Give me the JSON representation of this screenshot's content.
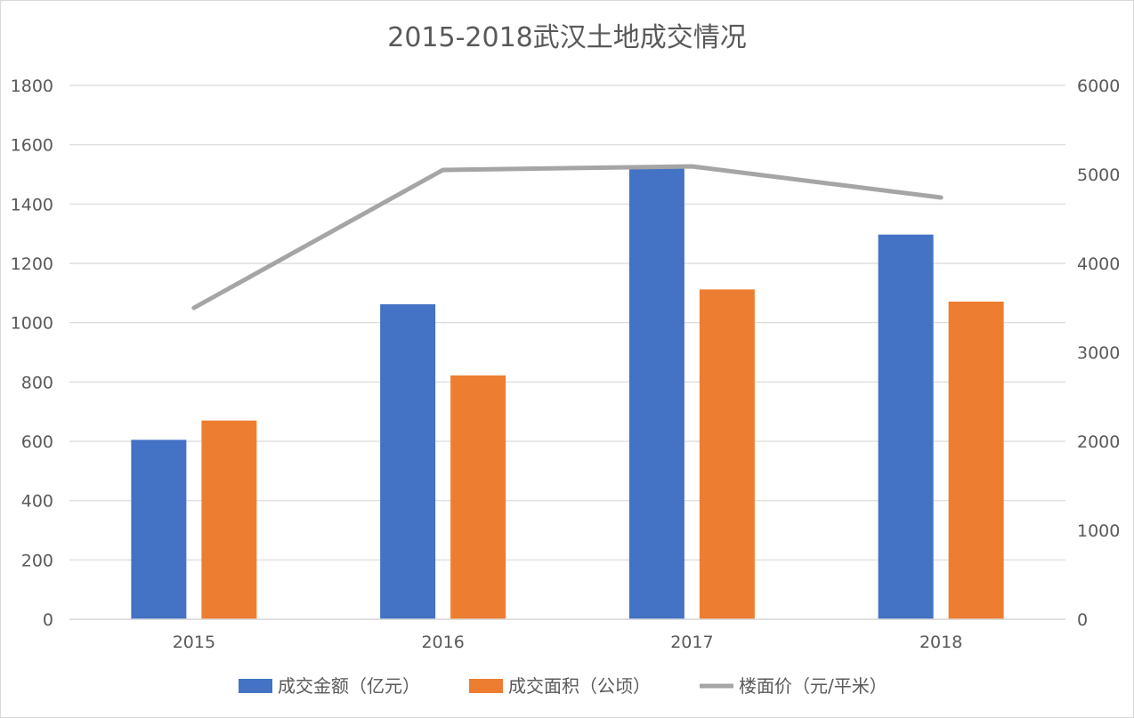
{
  "chart_data": {
    "type": "bar",
    "title": "2015-2018武汉土地成交情况",
    "categories": [
      "2015",
      "2016",
      "2017",
      "2018"
    ],
    "series": [
      {
        "name": "成交金额（亿元）",
        "type": "bar",
        "axis": "left",
        "color": "#4472C4",
        "values": [
          605,
          1062,
          1527,
          1297
        ]
      },
      {
        "name": "成交面积（公顷）",
        "type": "bar",
        "axis": "left",
        "color": "#ED7D31",
        "values": [
          670,
          822,
          1112,
          1071
        ]
      },
      {
        "name": "楼面价（元/平米）",
        "type": "line",
        "axis": "right",
        "color": "#A5A5A5",
        "values": [
          3500,
          5050,
          5090,
          4740
        ]
      }
    ],
    "ylim": [
      0,
      1800
    ],
    "y_ticks": [
      "0",
      "200",
      "400",
      "600",
      "800",
      "1000",
      "1200",
      "1400",
      "1600",
      "1800"
    ],
    "y2lim": [
      0,
      6000
    ],
    "y2_ticks": [
      "0",
      "1000",
      "2000",
      "3000",
      "4000",
      "5000",
      "6000"
    ],
    "grid": true,
    "legend_position": "bottom"
  }
}
